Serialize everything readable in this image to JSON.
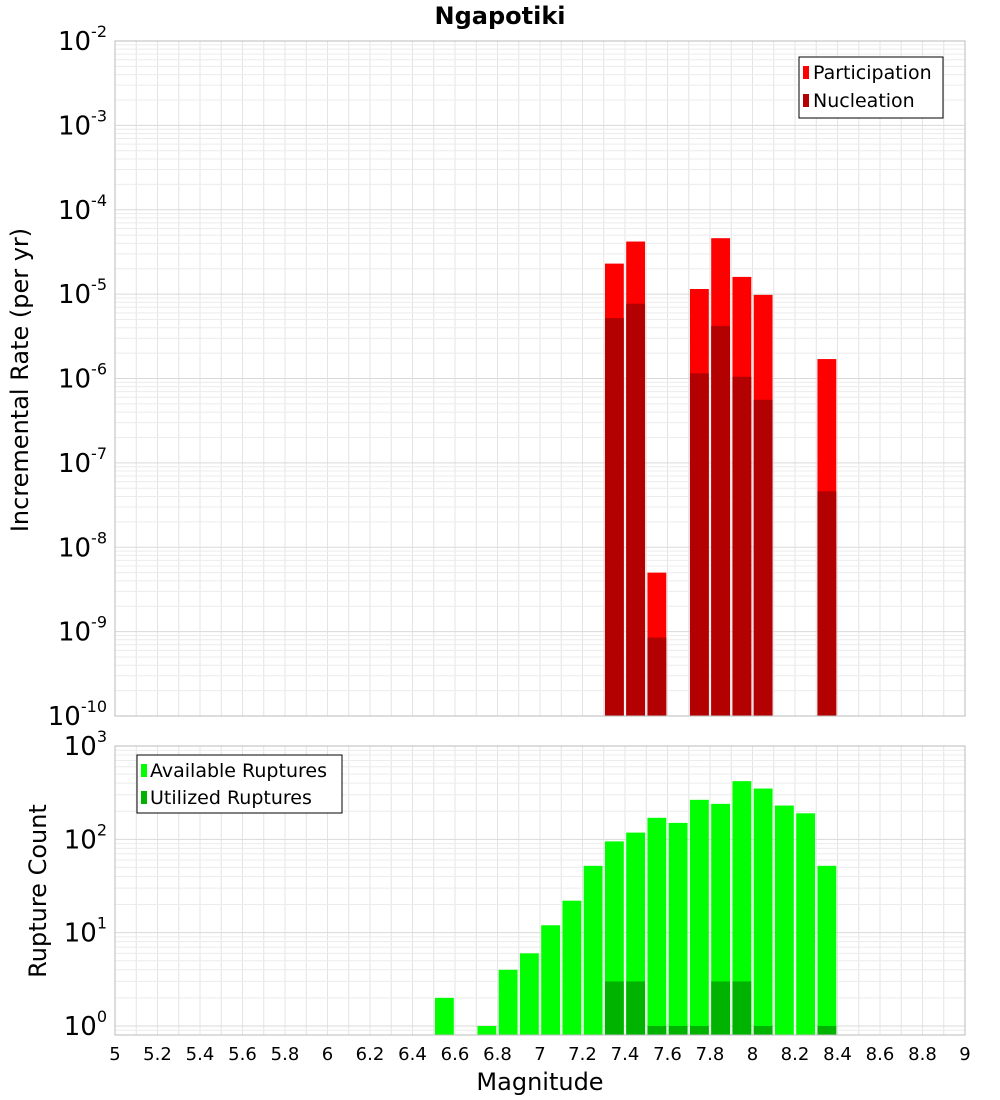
{
  "chart_data": [
    {
      "type": "bar",
      "title": "Ngapotiki",
      "ylabel": "Incremental Rate (per yr)",
      "xlabel": "",
      "yscale": "log",
      "ylim": [
        1e-10,
        0.01
      ],
      "xlim": [
        5,
        9
      ],
      "grid": true,
      "legend_position": "top-right",
      "overlay": true,
      "series": [
        {
          "name": "Participation",
          "color": "#ff0000",
          "x": [
            7.35,
            7.45,
            7.55,
            7.75,
            7.85,
            7.95,
            8.05,
            8.35
          ],
          "values": [
            2.3e-05,
            4.2e-05,
            5e-09,
            1.15e-05,
            4.6e-05,
            1.6e-05,
            9.8e-06,
            1.7e-06
          ]
        },
        {
          "name": "Nucleation",
          "color": "#b30000",
          "x": [
            7.35,
            7.45,
            7.55,
            7.75,
            7.85,
            7.95,
            8.05,
            8.35
          ],
          "values": [
            5.2e-06,
            7.7e-06,
            8.5e-10,
            1.15e-06,
            4.2e-06,
            1.05e-06,
            5.6e-07,
            4.6e-08
          ]
        }
      ],
      "y_ticks": [
        {
          "base": "10",
          "exp": "-10",
          "value": 1e-10
        },
        {
          "base": "10",
          "exp": "-9",
          "value": 1e-09
        },
        {
          "base": "10",
          "exp": "-8",
          "value": 1e-08
        },
        {
          "base": "10",
          "exp": "-7",
          "value": 1e-07
        },
        {
          "base": "10",
          "exp": "-6",
          "value": 1e-06
        },
        {
          "base": "10",
          "exp": "-5",
          "value": 1e-05
        },
        {
          "base": "10",
          "exp": "-4",
          "value": 0.0001
        },
        {
          "base": "10",
          "exp": "-3",
          "value": 0.001
        },
        {
          "base": "10",
          "exp": "-2",
          "value": 0.01
        }
      ]
    },
    {
      "type": "bar",
      "title": "",
      "ylabel": "Rupture Count",
      "xlabel": "Magnitude",
      "yscale": "log",
      "ylim": [
        0.8,
        1000
      ],
      "xlim": [
        5,
        9
      ],
      "grid": true,
      "legend_position": "top-left",
      "overlay": true,
      "series": [
        {
          "name": "Available Ruptures",
          "color": "#00ff00",
          "x": [
            6.55,
            6.75,
            6.85,
            6.95,
            7.05,
            7.15,
            7.25,
            7.35,
            7.45,
            7.55,
            7.65,
            7.75,
            7.85,
            7.95,
            8.05,
            8.15,
            8.25,
            8.35
          ],
          "values": [
            2,
            1,
            4,
            6,
            12,
            22,
            52,
            95,
            118,
            170,
            150,
            265,
            240,
            420,
            350,
            230,
            190,
            52
          ]
        },
        {
          "name": "Utilized Ruptures",
          "color": "#00b300",
          "x": [
            7.35,
            7.45,
            7.55,
            7.65,
            7.75,
            7.85,
            7.95,
            8.05,
            8.35
          ],
          "values": [
            3,
            3,
            1,
            1,
            1,
            3,
            3,
            1,
            1
          ]
        }
      ],
      "y_ticks": [
        {
          "base": "10",
          "exp": "0",
          "value": 1
        },
        {
          "base": "10",
          "exp": "1",
          "value": 10
        },
        {
          "base": "10",
          "exp": "2",
          "value": 100
        },
        {
          "base": "10",
          "exp": "3",
          "value": 1000
        }
      ]
    }
  ],
  "x_ticks": [
    {
      "label": "5",
      "value": 5
    },
    {
      "label": "5.2",
      "value": 5.2
    },
    {
      "label": "5.4",
      "value": 5.4
    },
    {
      "label": "5.6",
      "value": 5.6
    },
    {
      "label": "5.8",
      "value": 5.8
    },
    {
      "label": "6",
      "value": 6
    },
    {
      "label": "6.2",
      "value": 6.2
    },
    {
      "label": "6.4",
      "value": 6.4
    },
    {
      "label": "6.6",
      "value": 6.6
    },
    {
      "label": "6.8",
      "value": 6.8
    },
    {
      "label": "7",
      "value": 7
    },
    {
      "label": "7.2",
      "value": 7.2
    },
    {
      "label": "7.4",
      "value": 7.4
    },
    {
      "label": "7.6",
      "value": 7.6
    },
    {
      "label": "7.8",
      "value": 7.8
    },
    {
      "label": "8",
      "value": 8
    },
    {
      "label": "8.2",
      "value": 8.2
    },
    {
      "label": "8.4",
      "value": 8.4
    },
    {
      "label": "8.6",
      "value": 8.6
    },
    {
      "label": "8.8",
      "value": 8.8
    },
    {
      "label": "9",
      "value": 9
    }
  ]
}
